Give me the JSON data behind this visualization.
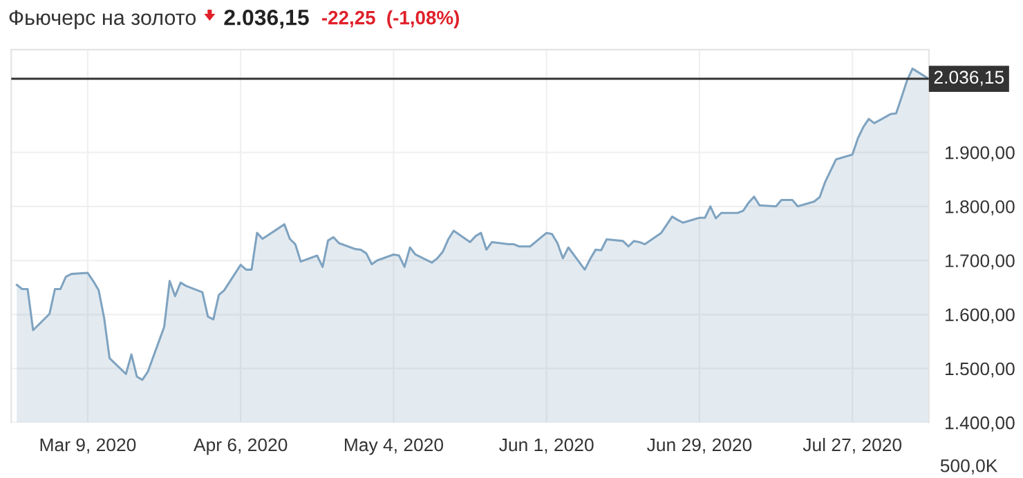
{
  "chart_data": {
    "type": "area",
    "title": "Фьючерс на золото",
    "subtitle": "2.036,15",
    "annotations": [
      "-22,25",
      "(-1,08%)",
      "500,0K"
    ],
    "x": [
      "2020-02-25",
      "2020-02-26",
      "2020-02-27",
      "2020-02-28",
      "2020-03-02",
      "2020-03-03",
      "2020-03-04",
      "2020-03-05",
      "2020-03-06",
      "2020-03-09",
      "2020-03-10",
      "2020-03-11",
      "2020-03-12",
      "2020-03-13",
      "2020-03-16",
      "2020-03-17",
      "2020-03-18",
      "2020-03-19",
      "2020-03-20",
      "2020-03-23",
      "2020-03-24",
      "2020-03-25",
      "2020-03-26",
      "2020-03-27",
      "2020-03-30",
      "2020-03-31",
      "2020-04-01",
      "2020-04-02",
      "2020-04-03",
      "2020-04-06",
      "2020-04-07",
      "2020-04-08",
      "2020-04-09",
      "2020-04-10",
      "2020-04-13",
      "2020-04-14",
      "2020-04-15",
      "2020-04-16",
      "2020-04-17",
      "2020-04-20",
      "2020-04-21",
      "2020-04-22",
      "2020-04-23",
      "2020-04-24",
      "2020-04-27",
      "2020-04-28",
      "2020-04-29",
      "2020-04-30",
      "2020-05-01",
      "2020-05-04",
      "2020-05-05",
      "2020-05-06",
      "2020-05-07",
      "2020-05-08",
      "2020-05-11",
      "2020-05-12",
      "2020-05-13",
      "2020-05-14",
      "2020-05-15",
      "2020-05-18",
      "2020-05-19",
      "2020-05-20",
      "2020-05-21",
      "2020-05-22",
      "2020-05-25",
      "2020-05-26",
      "2020-05-27",
      "2020-05-28",
      "2020-05-29",
      "2020-06-01",
      "2020-06-02",
      "2020-06-03",
      "2020-06-04",
      "2020-06-05",
      "2020-06-08",
      "2020-06-09",
      "2020-06-10",
      "2020-06-11",
      "2020-06-12",
      "2020-06-15",
      "2020-06-16",
      "2020-06-17",
      "2020-06-18",
      "2020-06-19",
      "2020-06-22",
      "2020-06-23",
      "2020-06-24",
      "2020-06-25",
      "2020-06-26",
      "2020-06-29",
      "2020-06-30",
      "2020-07-01",
      "2020-07-02",
      "2020-07-03",
      "2020-07-06",
      "2020-07-07",
      "2020-07-08",
      "2020-07-09",
      "2020-07-10",
      "2020-07-13",
      "2020-07-14",
      "2020-07-15",
      "2020-07-16",
      "2020-07-17",
      "2020-07-20",
      "2020-07-21",
      "2020-07-22",
      "2020-07-23",
      "2020-07-24",
      "2020-07-27",
      "2020-07-28",
      "2020-07-29",
      "2020-07-30",
      "2020-07-31",
      "2020-08-03",
      "2020-08-04",
      "2020-08-05",
      "2020-08-06",
      "2020-08-07",
      "2020-08-10"
    ],
    "series": [
      {
        "color": "#7fa3c0",
        "values": [
          1655,
          1647,
          1647,
          1571,
          1601,
          1647,
          1647,
          1670,
          1675,
          1677,
          1662,
          1645,
          1594,
          1519,
          1490,
          1526,
          1485,
          1479,
          1494,
          1577,
          1662,
          1634,
          1659,
          1653,
          1641,
          1596,
          1591,
          1636,
          1645,
          1692,
          1683,
          1683,
          1751,
          1740,
          1760,
          1767,
          1740,
          1730,
          1698,
          1709,
          1688,
          1737,
          1743,
          1732,
          1721,
          1720,
          1713,
          1693,
          1700,
          1711,
          1709,
          1688,
          1724,
          1711,
          1696,
          1704,
          1716,
          1739,
          1755,
          1734,
          1745,
          1751,
          1720,
          1734,
          1730,
          1730,
          1726,
          1726,
          1726,
          1751,
          1749,
          1732,
          1704,
          1724,
          1683,
          1703,
          1720,
          1719,
          1739,
          1736,
          1726,
          1736,
          1734,
          1730,
          1751,
          1766,
          1781,
          1775,
          1770,
          1779,
          1779,
          1800,
          1778,
          1788,
          1788,
          1792,
          1807,
          1818,
          1802,
          1800,
          1812,
          1812,
          1812,
          1800,
          1809,
          1817,
          1845,
          1866,
          1887,
          1896,
          1926,
          1947,
          1962,
          1954,
          1971,
          1972,
          2002,
          2033,
          2055,
          2036
        ]
      }
    ],
    "xlim": [
      "2020-02-24",
      "2020-08-10"
    ],
    "xticks": [
      {
        "value": "2020-03-09",
        "label": "Mar 9, 2020"
      },
      {
        "value": "2020-04-06",
        "label": "Apr 6, 2020"
      },
      {
        "value": "2020-05-04",
        "label": "May 4, 2020"
      },
      {
        "value": "2020-06-01",
        "label": "Jun 1, 2020"
      },
      {
        "value": "2020-06-29",
        "label": "Jun 29, 2020"
      },
      {
        "value": "2020-07-27",
        "label": "Jul 27, 2020"
      }
    ],
    "ylim": [
      1400,
      2090
    ],
    "yticks": [
      {
        "value": 1400,
        "label": "1.400,00"
      },
      {
        "value": 1500,
        "label": "1.500,00"
      },
      {
        "value": 1600,
        "label": "1.600,00"
      },
      {
        "value": 1700,
        "label": "1.700,00"
      },
      {
        "value": 1800,
        "label": "1.800,00"
      },
      {
        "value": 1900,
        "label": "1.900,00"
      }
    ],
    "ref_lines": [
      {
        "axis": "y",
        "value": 2036.15,
        "label": "2.036,15",
        "color": "#333333"
      }
    ],
    "grid": true,
    "legend": false
  }
}
